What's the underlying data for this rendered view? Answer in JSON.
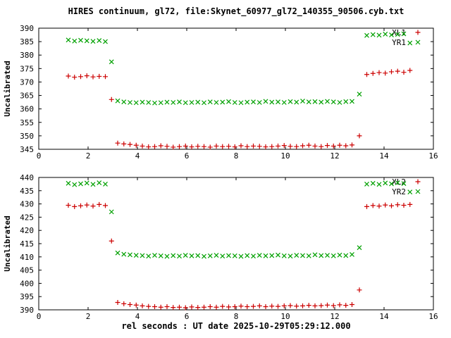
{
  "title": "HIRES continuum, gl72, file:Skynet_60977_gl72_140355_90506.cyb.txt",
  "xlabel": "rel seconds : UT date 2025-10-29T05:29:12.000",
  "colors": {
    "red": "#cc0000",
    "green": "#00a000",
    "text": "#000000",
    "axis": "#000000"
  },
  "chart_data": [
    {
      "type": "scatter",
      "ylabel": "Uncalibrated",
      "xlim": [
        0,
        16
      ],
      "ylim": [
        345,
        390
      ],
      "xticks": [
        0,
        2,
        4,
        6,
        8,
        10,
        12,
        14,
        16
      ],
      "yticks": [
        345,
        350,
        355,
        360,
        365,
        370,
        375,
        380,
        385,
        390
      ],
      "grid": false,
      "legend_position": "top-right",
      "x": [
        1.2,
        1.45,
        1.7,
        1.95,
        2.2,
        2.45,
        2.7,
        2.95,
        3.2,
        3.45,
        3.7,
        3.95,
        4.2,
        4.45,
        4.7,
        4.95,
        5.2,
        5.45,
        5.7,
        5.95,
        6.2,
        6.45,
        6.7,
        6.95,
        7.2,
        7.45,
        7.7,
        7.95,
        8.2,
        8.45,
        8.7,
        8.95,
        9.2,
        9.45,
        9.7,
        9.95,
        10.2,
        10.45,
        10.7,
        10.95,
        11.2,
        11.45,
        11.7,
        11.95,
        12.2,
        12.45,
        12.7,
        13.0,
        13.3,
        13.55,
        13.8,
        14.05,
        14.3,
        14.55,
        14.8,
        15.05
      ],
      "series": [
        {
          "name": "XL1",
          "marker": "plus",
          "color": "#cc0000",
          "values": [
            372.2,
            371.8,
            372.0,
            372.3,
            371.9,
            372.1,
            372.0,
            363.5,
            347.3,
            347.0,
            346.8,
            346.5,
            346.2,
            345.9,
            346.0,
            346.3,
            346.1,
            345.8,
            346.0,
            346.2,
            345.9,
            346.1,
            346.0,
            345.8,
            346.2,
            346.0,
            346.1,
            345.9,
            346.3,
            346.0,
            346.2,
            346.1,
            345.9,
            346.0,
            346.2,
            346.4,
            346.1,
            346.0,
            346.3,
            346.5,
            346.2,
            346.0,
            346.4,
            346.2,
            346.5,
            346.3,
            346.6,
            350.0,
            372.8,
            373.2,
            373.5,
            373.3,
            373.8,
            374.0,
            373.6,
            374.3
          ]
        },
        {
          "name": "YR1",
          "marker": "cross",
          "color": "#00a000",
          "values": [
            385.6,
            385.2,
            385.5,
            385.3,
            385.1,
            385.4,
            385.0,
            377.5,
            363.0,
            362.6,
            362.4,
            362.3,
            362.5,
            362.4,
            362.2,
            362.3,
            362.5,
            362.4,
            362.6,
            362.3,
            362.4,
            362.5,
            362.3,
            362.6,
            362.4,
            362.5,
            362.7,
            362.4,
            362.3,
            362.5,
            362.6,
            362.4,
            362.8,
            362.5,
            362.6,
            362.4,
            362.7,
            362.5,
            362.9,
            362.6,
            362.7,
            362.5,
            362.8,
            362.6,
            362.4,
            362.7,
            362.8,
            365.5,
            387.3,
            387.6,
            387.4,
            387.8,
            387.5,
            387.7,
            387.9,
            384.5
          ]
        }
      ]
    },
    {
      "type": "scatter",
      "ylabel": "Uncalibrated",
      "xlim": [
        0,
        16
      ],
      "ylim": [
        390,
        440
      ],
      "xticks": [
        0,
        2,
        4,
        6,
        8,
        10,
        12,
        14,
        16
      ],
      "yticks": [
        390,
        395,
        400,
        405,
        410,
        415,
        420,
        425,
        430,
        435,
        440
      ],
      "grid": false,
      "legend_position": "top-right",
      "x": [
        1.2,
        1.45,
        1.7,
        1.95,
        2.2,
        2.45,
        2.7,
        2.95,
        3.2,
        3.45,
        3.7,
        3.95,
        4.2,
        4.45,
        4.7,
        4.95,
        5.2,
        5.45,
        5.7,
        5.95,
        6.2,
        6.45,
        6.7,
        6.95,
        7.2,
        7.45,
        7.7,
        7.95,
        8.2,
        8.45,
        8.7,
        8.95,
        9.2,
        9.45,
        9.7,
        9.95,
        10.2,
        10.45,
        10.7,
        10.95,
        11.2,
        11.45,
        11.7,
        11.95,
        12.2,
        12.45,
        12.7,
        13.0,
        13.3,
        13.55,
        13.8,
        14.05,
        14.3,
        14.55,
        14.8,
        15.05
      ],
      "series": [
        {
          "name": "XL2",
          "marker": "plus",
          "color": "#cc0000",
          "values": [
            429.5,
            429.0,
            429.3,
            429.6,
            429.2,
            429.8,
            429.4,
            416.0,
            392.8,
            392.3,
            392.0,
            391.8,
            391.5,
            391.3,
            391.2,
            391.0,
            391.2,
            390.9,
            391.0,
            390.8,
            391.1,
            390.9,
            391.0,
            391.2,
            391.0,
            391.3,
            391.1,
            391.2,
            391.4,
            391.2,
            391.3,
            391.5,
            391.2,
            391.4,
            391.3,
            391.5,
            391.6,
            391.4,
            391.5,
            391.7,
            391.5,
            391.6,
            391.8,
            391.6,
            391.9,
            391.7,
            392.0,
            397.5,
            429.0,
            429.4,
            429.2,
            429.6,
            429.3,
            429.7,
            429.5,
            429.8
          ]
        },
        {
          "name": "YR2",
          "marker": "cross",
          "color": "#00a000",
          "values": [
            437.8,
            437.3,
            437.6,
            437.9,
            437.4,
            438.0,
            437.5,
            427.0,
            411.5,
            411.0,
            410.8,
            410.6,
            410.5,
            410.3,
            410.6,
            410.4,
            410.2,
            410.5,
            410.3,
            410.6,
            410.4,
            410.5,
            410.2,
            410.4,
            410.6,
            410.3,
            410.5,
            410.4,
            410.2,
            410.5,
            410.3,
            410.6,
            410.4,
            410.5,
            410.7,
            410.4,
            410.3,
            410.6,
            410.5,
            410.4,
            410.8,
            410.5,
            410.6,
            410.4,
            410.7,
            410.5,
            410.9,
            413.5,
            437.5,
            437.8,
            437.4,
            437.9,
            437.6,
            438.0,
            437.7,
            434.5
          ]
        }
      ]
    }
  ]
}
